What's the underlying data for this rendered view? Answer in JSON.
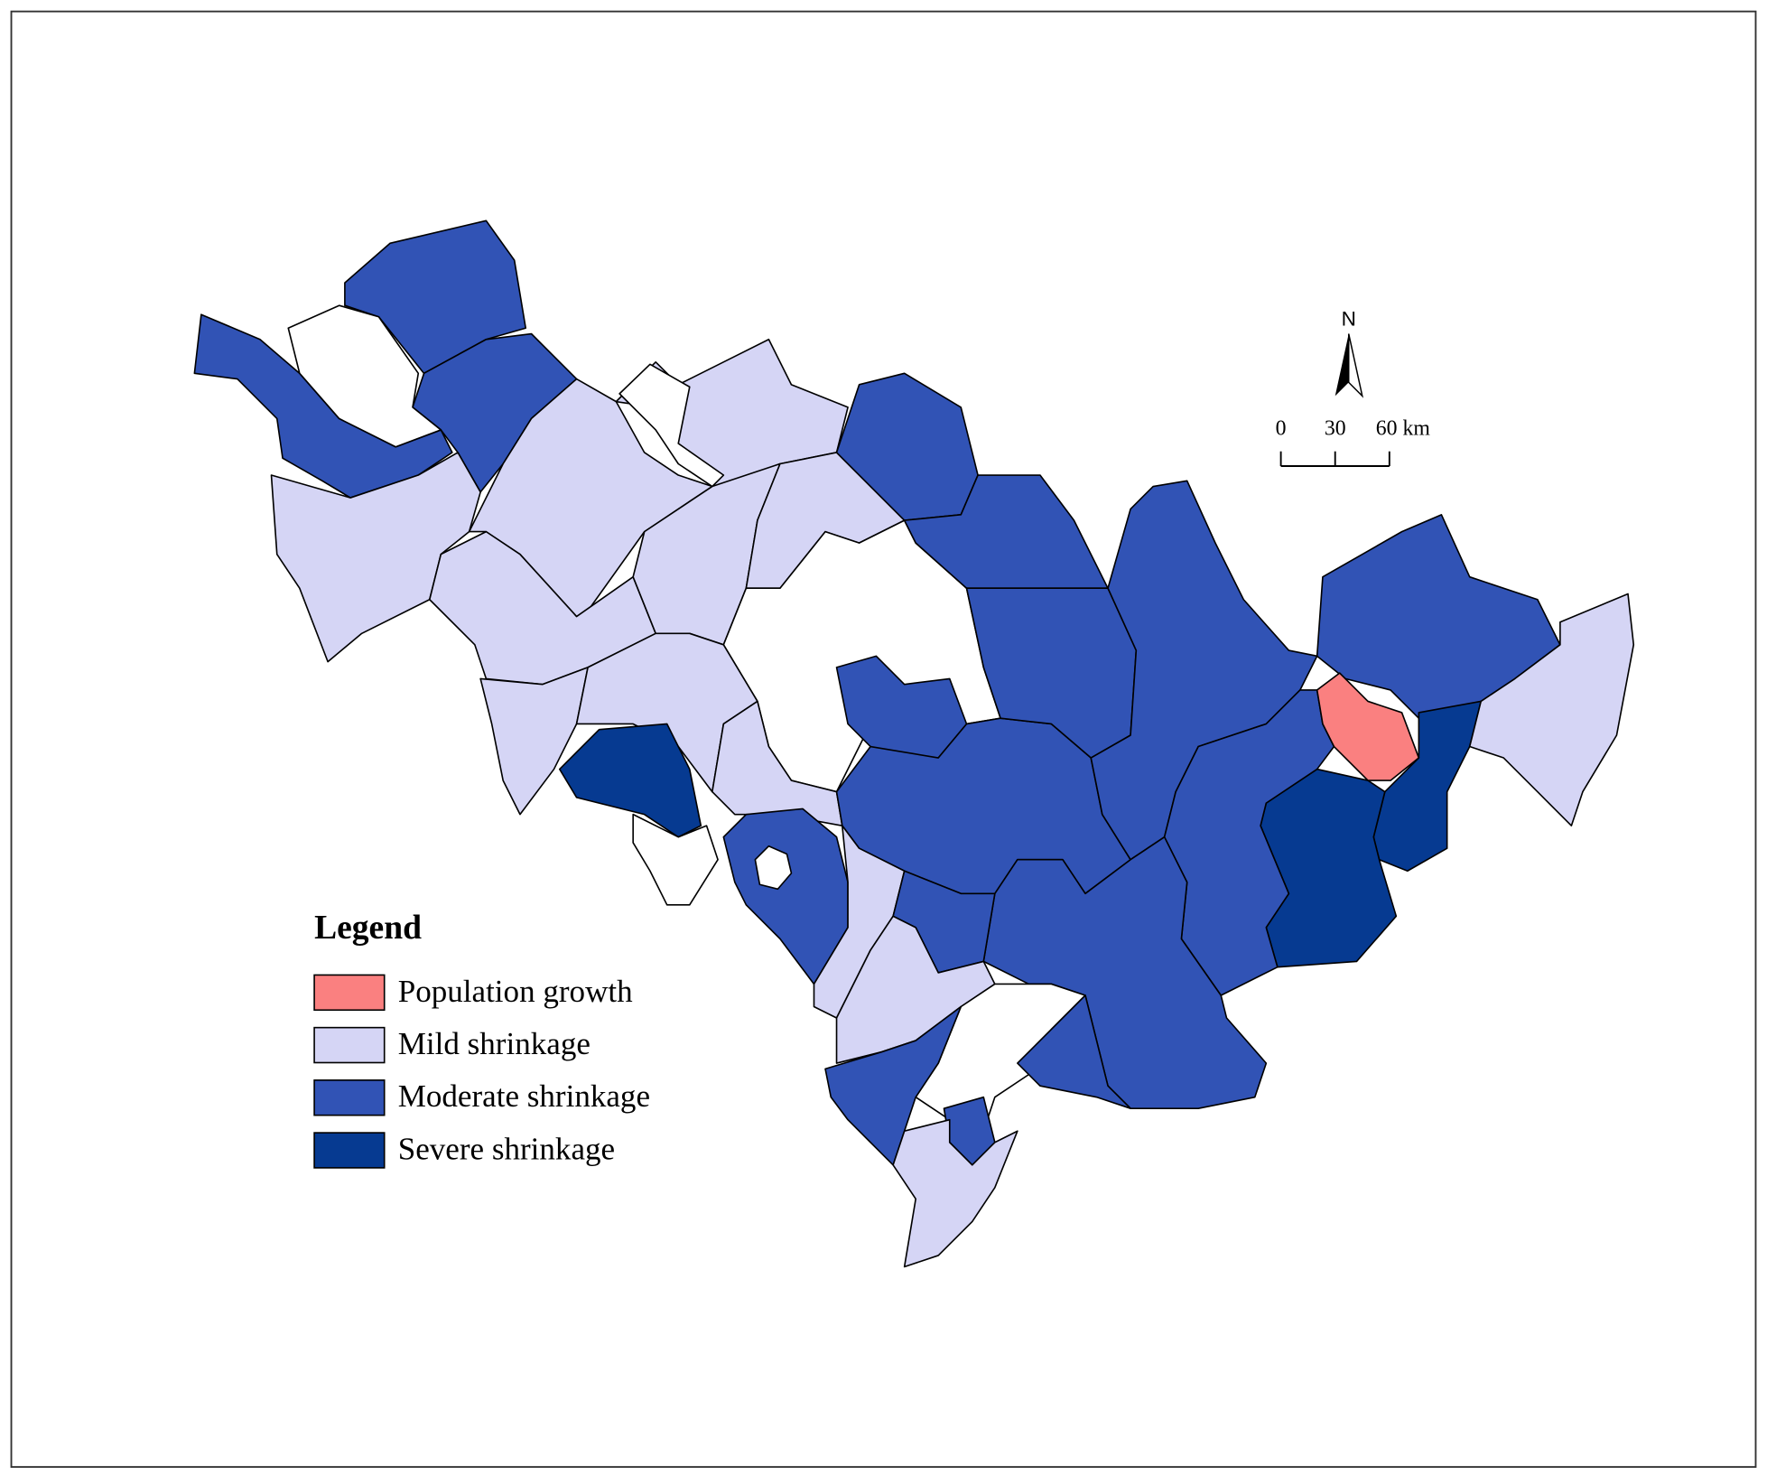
{
  "legend": {
    "title": "Legend",
    "items": [
      {
        "label": "Population growth",
        "color": "#fa8080"
      },
      {
        "label": "Mild shrinkage",
        "color": "#d5d5f5"
      },
      {
        "label": "Moderate shrinkage",
        "color": "#3153b5"
      },
      {
        "label": "Severe shrinkage",
        "color": "#063a91"
      }
    ]
  },
  "north_arrow": {
    "label": "N"
  },
  "scale_bar": {
    "ticks": [
      0,
      30,
      {
        "value": 60,
        "label": "60 km"
      }
    ]
  }
}
